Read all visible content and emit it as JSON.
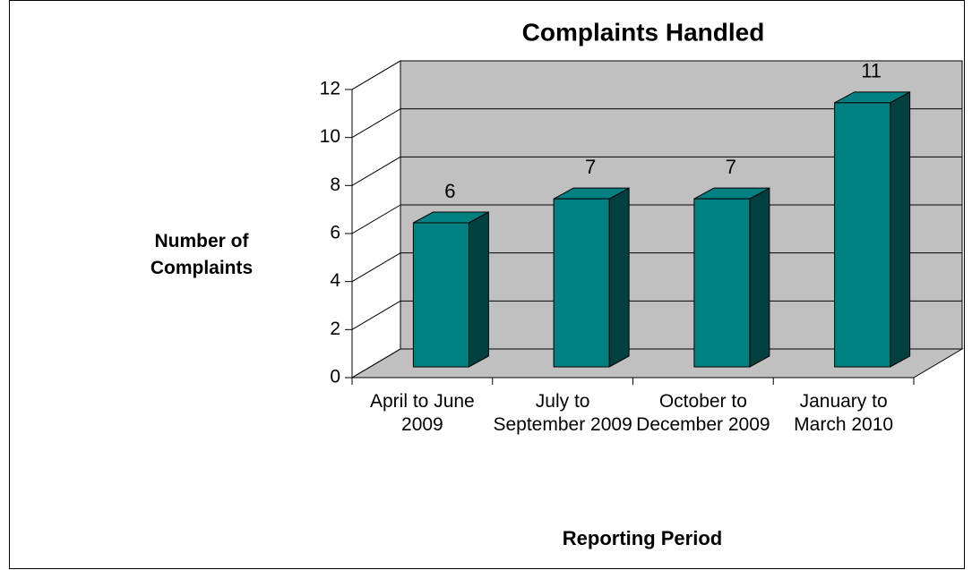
{
  "chart_data": {
    "type": "bar3d",
    "title": "Complaints Handled",
    "x_label": "Reporting Period",
    "y_label": "Number of Complaints",
    "categories": [
      "April to June 2009",
      "July to September 2009",
      "October to December 2009",
      "January to March 2010"
    ],
    "values": [
      6,
      7,
      7,
      11
    ],
    "color": "#008080",
    "ylim": [
      0,
      12
    ],
    "yticks": [
      0,
      2,
      4,
      6,
      8,
      10,
      12
    ],
    "grid": true
  }
}
